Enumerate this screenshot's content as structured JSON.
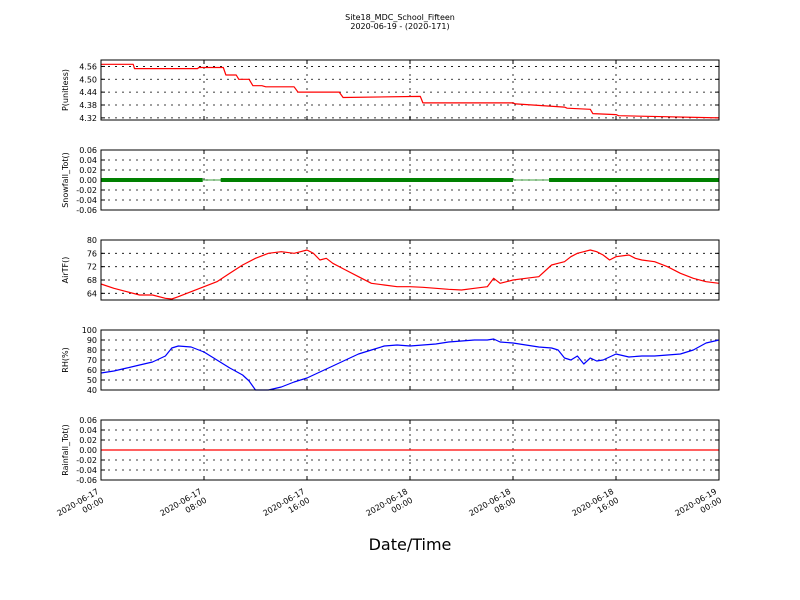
{
  "title": "Site18_MDC_School_Fifteen",
  "subtitle": "2020-06-19 - (2020-171)",
  "xlabel": "Date/Time",
  "x_ticks": [
    {
      "t": 0,
      "line1": "2020-06-17",
      "line2": "00:00"
    },
    {
      "t": 8,
      "line1": "2020-06-17",
      "line2": "08:00"
    },
    {
      "t": 16,
      "line1": "2020-06-17",
      "line2": "16:00"
    },
    {
      "t": 24,
      "line1": "2020-06-18",
      "line2": "00:00"
    },
    {
      "t": 32,
      "line1": "2020-06-18",
      "line2": "08:00"
    },
    {
      "t": 40,
      "line1": "2020-06-18",
      "line2": "16:00"
    },
    {
      "t": 48,
      "line1": "2020-06-19",
      "line2": "00:00"
    }
  ],
  "chart_data": [
    {
      "type": "line",
      "ylabel": "P(unitless)",
      "ylim": [
        4.31,
        4.59
      ],
      "yticks": [
        "4.56",
        "4.50",
        "4.44",
        "4.38",
        "4.32"
      ],
      "ytick_values": [
        4.56,
        4.5,
        4.44,
        4.38,
        4.32
      ],
      "color": "#ff0000",
      "grid": true,
      "series": [
        {
          "x": [
            0,
            2.5,
            2.6,
            6,
            6.1,
            7.5,
            7.6,
            9.5,
            9.7,
            10.5,
            10.7,
            11.5,
            11.8,
            12.5,
            12.8,
            15,
            15.3,
            18.5,
            18.8,
            24.8,
            25,
            32,
            32.2,
            36,
            36.2,
            38,
            38.2,
            40,
            40.2,
            48
          ],
          "y": [
            4.57,
            4.57,
            4.55,
            4.55,
            4.55,
            4.55,
            4.555,
            4.555,
            4.52,
            4.52,
            4.5,
            4.5,
            4.47,
            4.47,
            4.465,
            4.465,
            4.44,
            4.44,
            4.415,
            4.42,
            4.39,
            4.39,
            4.385,
            4.37,
            4.365,
            4.36,
            4.34,
            4.335,
            4.33,
            4.32
          ]
        }
      ]
    },
    {
      "type": "scatter",
      "ylabel": "Snowfall_Tot()",
      "ylim": [
        -0.06,
        0.06
      ],
      "yticks": [
        "0.06",
        "0.04",
        "0.02",
        "0.00",
        "-0.02",
        "-0.04",
        "-0.06"
      ],
      "ytick_values": [
        0.06,
        0.04,
        0.02,
        0.0,
        -0.02,
        -0.04,
        -0.06
      ],
      "color": "#008000",
      "grid": true,
      "series": [
        {
          "segments": [
            [
              0,
              7.9
            ],
            [
              9.3,
              32
            ],
            [
              34.8,
              48
            ]
          ],
          "gap_segments": [
            [
              7.9,
              9.3
            ],
            [
              32,
              34.8
            ]
          ],
          "y": 0.0
        }
      ]
    },
    {
      "type": "line",
      "ylabel": "AirTF()",
      "ylim": [
        62,
        80
      ],
      "yticks": [
        "80",
        "76",
        "72",
        "68",
        "64"
      ],
      "ytick_values": [
        80,
        76,
        72,
        68,
        64
      ],
      "color": "#ff0000",
      "grid": true,
      "series": [
        {
          "x": [
            0,
            1,
            2,
            3,
            4,
            5,
            5.5,
            6,
            7,
            8,
            9,
            10,
            11,
            12,
            13,
            14,
            15,
            15.5,
            16,
            16.5,
            17,
            17.5,
            18,
            19,
            20,
            21,
            22,
            23,
            24,
            25,
            26,
            27,
            28,
            29,
            30,
            30.5,
            31,
            31.5,
            32,
            33,
            34,
            35,
            35.5,
            36,
            36.5,
            37,
            37.5,
            38,
            38.5,
            39,
            39.5,
            40,
            41,
            41.5,
            42,
            43,
            44,
            45,
            46,
            47,
            48
          ],
          "y": [
            66.8,
            65.5,
            64.5,
            63.5,
            63.5,
            62.5,
            62.3,
            63,
            64.5,
            66,
            67.5,
            70,
            72.5,
            74.5,
            76,
            76.5,
            76,
            76.5,
            77,
            76,
            74,
            74.5,
            73,
            71,
            69,
            67,
            66.5,
            66,
            66,
            65.8,
            65.5,
            65.2,
            65,
            65.5,
            66,
            68.5,
            67,
            67.5,
            68,
            68.5,
            69,
            72.5,
            73,
            73.5,
            75,
            76,
            76.5,
            77,
            76.5,
            75.5,
            74,
            75,
            75.5,
            74.5,
            74,
            73.5,
            72,
            70,
            68.5,
            67.5,
            67
          ]
        }
      ]
    },
    {
      "type": "line",
      "ylabel": "RH(%)",
      "ylim": [
        40,
        100
      ],
      "yticks": [
        "100",
        "90",
        "80",
        "70",
        "60",
        "50",
        "40"
      ],
      "ytick_values": [
        100,
        90,
        80,
        70,
        60,
        50,
        40
      ],
      "color": "#0000ff",
      "grid": true,
      "series": [
        {
          "x": [
            0,
            1,
            2,
            3,
            4,
            5,
            5.5,
            6,
            7,
            8,
            9,
            10,
            11,
            11.5,
            12,
            13,
            14,
            15,
            16,
            17,
            18,
            19,
            20,
            21,
            22,
            23,
            24,
            25,
            26,
            27,
            28,
            29,
            30,
            30.5,
            31,
            32,
            33,
            34,
            35,
            35.5,
            36,
            36.5,
            37,
            37.5,
            38,
            38.5,
            39,
            40,
            41,
            42,
            43,
            44,
            45,
            46,
            47,
            48
          ],
          "y": [
            57,
            59,
            62,
            65,
            68,
            74,
            82,
            84,
            83,
            78,
            70,
            62,
            55,
            49,
            40,
            40,
            43,
            48,
            52,
            58,
            64,
            70,
            76,
            80,
            84,
            85,
            84,
            85,
            86,
            88,
            89,
            90,
            90,
            91,
            88,
            87,
            85,
            83,
            82,
            80,
            72,
            70,
            74,
            66,
            72,
            69,
            70,
            76,
            73,
            74,
            74,
            75,
            76,
            80,
            87,
            90
          ]
        }
      ]
    },
    {
      "type": "line",
      "ylabel": "Rainfall_Tot()",
      "ylim": [
        -0.06,
        0.06
      ],
      "yticks": [
        "0.06",
        "0.04",
        "0.02",
        "0.00",
        "-0.02",
        "-0.04",
        "-0.06"
      ],
      "ytick_values": [
        0.06,
        0.04,
        0.02,
        0.0,
        -0.02,
        -0.04,
        -0.06
      ],
      "color": "#ff0000",
      "grid": true,
      "series": [
        {
          "x": [
            0,
            48
          ],
          "y": [
            0,
            0
          ]
        }
      ]
    }
  ]
}
